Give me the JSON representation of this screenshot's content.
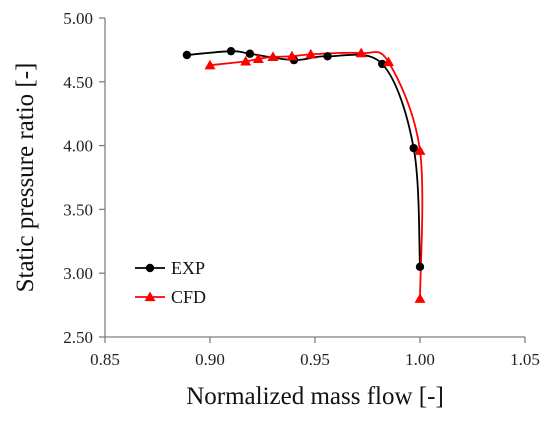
{
  "chart_data": {
    "type": "line",
    "title": "",
    "xlabel": "Normalized mass flow [-]",
    "ylabel": "Static pressure ratio [-]",
    "xlim": [
      0.85,
      1.05
    ],
    "ylim": [
      2.5,
      5.0
    ],
    "xticks": [
      "0.85",
      "0.90",
      "0.95",
      "1.00",
      "1.05"
    ],
    "yticks": [
      "2.50",
      "3.00",
      "3.50",
      "4.00",
      "4.50",
      "5.00"
    ],
    "grid": false,
    "legend_position": "lower-left",
    "series": [
      {
        "name": "EXP",
        "color": "#000000",
        "marker": "circle",
        "x": [
          0.889,
          0.91,
          0.919,
          0.94,
          0.956,
          0.982,
          0.997,
          1.0
        ],
        "y": [
          4.71,
          4.74,
          4.72,
          4.67,
          4.7,
          4.64,
          3.98,
          3.05
        ]
      },
      {
        "name": "CFD",
        "color": "#ff0000",
        "marker": "triangle",
        "x": [
          0.9,
          0.917,
          0.923,
          0.93,
          0.939,
          0.948,
          0.972,
          0.985,
          1.0,
          1.0
        ],
        "y": [
          4.63,
          4.66,
          4.68,
          4.695,
          4.7,
          4.715,
          4.725,
          4.655,
          3.96,
          2.8
        ]
      }
    ]
  }
}
